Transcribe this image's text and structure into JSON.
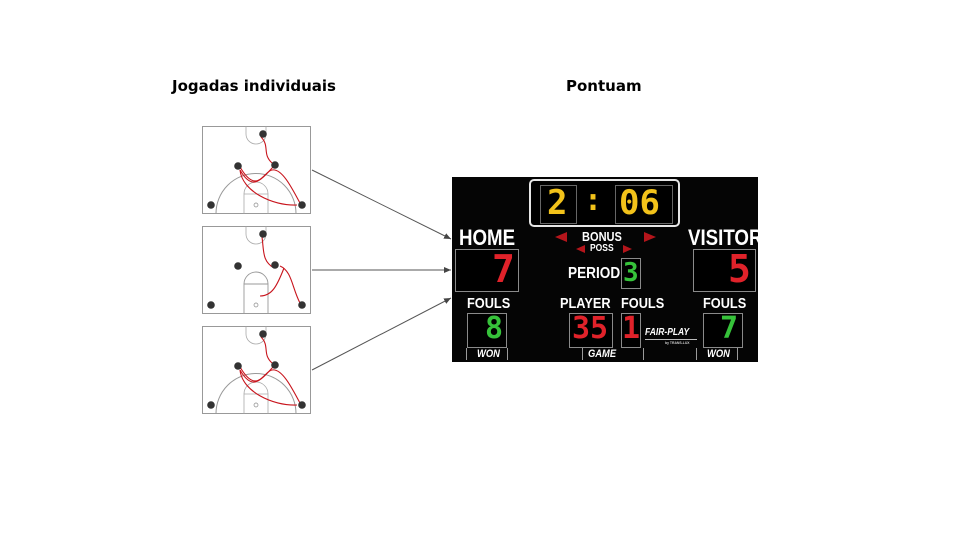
{
  "headings": {
    "left": "Jogadas individuais",
    "right": "Pontuam"
  },
  "courts": [
    {
      "name": "play-1"
    },
    {
      "name": "play-2"
    },
    {
      "name": "play-3"
    }
  ],
  "scoreboard": {
    "clock": {
      "minutes": "2",
      "seconds": "06",
      "separator": ":"
    },
    "bonus_label": "BONUS",
    "poss_label": "POSS",
    "home": {
      "label": "HOME",
      "score": "7",
      "fouls_label": "FOULS",
      "fouls": "8",
      "won_label": "WON"
    },
    "visitor": {
      "label": "VISITOR",
      "score": "5",
      "fouls_label": "FOULS",
      "fouls": "7",
      "won_label": "WON"
    },
    "period_label": "PERIOD",
    "period": "3",
    "player_label": "PLAYER",
    "player": "35",
    "player_fouls_label": "FOULS",
    "player_fouls": "1",
    "game_label": "GAME",
    "brand": "FAIR-PLAY",
    "brand_sub": "by TRANS-LUX",
    "colors": {
      "clock": "#f2c21a",
      "score": "#e0222a",
      "fouls": "#36c23a",
      "period": "#36c23a",
      "bonus_arrow": "#b4151b"
    }
  }
}
